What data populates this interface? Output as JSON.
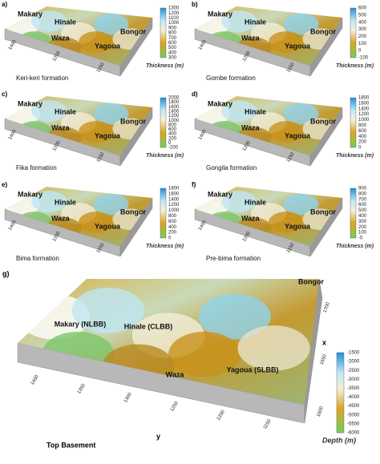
{
  "panels": [
    {
      "letter": "a)",
      "formation": "Keri-keri formation",
      "places": [
        "Makary",
        "Hinale",
        "Waza",
        "Bongor",
        "Yagoua"
      ],
      "colorbar": {
        "title": "Thickness (m)",
        "ticks": [
          "1300",
          "1200",
          "1100",
          "1000",
          "900",
          "800",
          "700",
          "600",
          "500",
          "400",
          "300"
        ]
      },
      "axis_labels": [
        "1400",
        "1250",
        "1150"
      ]
    },
    {
      "letter": "b)",
      "formation": "Gombe formation",
      "places": [
        "Makary",
        "Hinale",
        "Waza",
        "Bongor",
        "Yagoua"
      ],
      "colorbar": {
        "title": "Thickness (m)",
        "ticks": [
          "600",
          "500",
          "400",
          "300",
          "200",
          "100",
          "0",
          "-100"
        ]
      },
      "axis_labels": [
        "1400",
        "1200",
        "1150"
      ]
    },
    {
      "letter": "c)",
      "formation": "Fika formation",
      "places": [
        "Makary",
        "Hinale",
        "Waza",
        "Bongor",
        "Yagoua"
      ],
      "colorbar": {
        "title": "Thickness (m)",
        "ticks": [
          "2000",
          "1800",
          "1600",
          "1400",
          "1200",
          "1000",
          "800",
          "600",
          "400",
          "200",
          "0",
          "-200"
        ]
      },
      "axis_labels": [
        "1400",
        "1200",
        "1150"
      ]
    },
    {
      "letter": "d)",
      "formation": "Gongila formation",
      "places": [
        "Makary",
        "Hinale",
        "Waza",
        "Bongor",
        "Yagoua"
      ],
      "colorbar": {
        "title": "Thickness (m)",
        "ticks": [
          "1800",
          "1600",
          "1400",
          "1200",
          "1000",
          "800",
          "600",
          "400",
          "200",
          "0"
        ]
      },
      "axis_labels": [
        "1400",
        "1200",
        "1150"
      ]
    },
    {
      "letter": "e)",
      "formation": "Bima formation",
      "places": [
        "Makary",
        "Hinale",
        "Waza",
        "Bongor",
        "Yagoua"
      ],
      "colorbar": {
        "title": "Thickness (m)",
        "ticks": [
          "1800",
          "1600",
          "1400",
          "1200",
          "1000",
          "800",
          "600",
          "400",
          "200",
          "0"
        ]
      },
      "axis_labels": [
        "1400",
        "1200",
        "1150"
      ]
    },
    {
      "letter": "f)",
      "formation": "Pre-bima formation",
      "places": [
        "Makary",
        "Hinale",
        "Waza",
        "Bongor",
        "Yagoua"
      ],
      "colorbar": {
        "title": "Thickness (m)",
        "ticks": [
          "900",
          "800",
          "700",
          "600",
          "500",
          "400",
          "300",
          "200",
          "100",
          "-0"
        ]
      },
      "axis_labels": [
        "1400",
        "1200",
        "1150"
      ]
    }
  ],
  "main": {
    "letter": "g)",
    "formation": "Top Basement",
    "places": [
      "Makary (NLBB)",
      "Hinale (CLBB)",
      "Waza",
      "Bongor",
      "Yagoua (SLBB)"
    ],
    "colorbar": {
      "title": "Depth (m)",
      "ticks": [
        "-1500",
        "-2000",
        "-2500",
        "-3000",
        "-3500",
        "-4000",
        "-4500",
        "-5000",
        "-5500",
        "-6000"
      ]
    },
    "y_ticks": [
      "1400",
      "1350",
      "1300",
      "1250",
      "1200",
      "1150"
    ],
    "y_label": "y",
    "x_ticks": [
      "1700",
      "1650",
      "1600"
    ],
    "x_label": "x"
  }
}
